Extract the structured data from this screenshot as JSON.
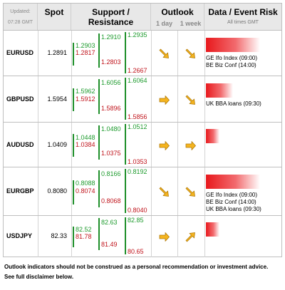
{
  "header": {
    "updated_label": "Updated:",
    "updated_time": "07:28 GMT",
    "spot": "Spot",
    "support_resistance": "Support / Resistance",
    "outlook": "Outlook",
    "outlook_1day": "1 day",
    "outlook_1week": "1 week",
    "data_event_risk": "Data / Event Risk",
    "times_note": "All times GMT"
  },
  "colors": {
    "resistance": "#1e9b2e",
    "support": "#c0141c",
    "arrow_fill": "#f5b41e",
    "risk_bar": "#e8181c"
  },
  "rows": [
    {
      "symbol": "EURUSD",
      "spot": "1.2891",
      "r1": "1.2903",
      "r2": "1.2910",
      "r3": "1.2935",
      "s1": "1.2817",
      "s2": "1.2803",
      "s3": "1.2667",
      "outlook_1day": "down-right-arrow-icon",
      "outlook_1week": "down-right-arrow-icon",
      "risk_level": 0.95,
      "events": [
        "GE Ifo Index (09:00)",
        "BE Biz Conf (14:00)"
      ]
    },
    {
      "symbol": "GBPUSD",
      "spot": "1.5954",
      "r1": "1.5962",
      "r2": "1.6056",
      "r3": "1.6064",
      "s1": "1.5912",
      "s2": "1.5896",
      "s3": "1.5856",
      "outlook_1day": "right-arrow-icon",
      "outlook_1week": "down-right-arrow-icon",
      "risk_level": 0.48,
      "events": [
        "UK BBA loans (09:30)"
      ]
    },
    {
      "symbol": "AUDUSD",
      "spot": "1.0409",
      "r1": "1.0448",
      "r2": "1.0480",
      "r3": "1.0512",
      "s1": "1.0384",
      "s2": "1.0375",
      "s3": "1.0353",
      "outlook_1day": "right-arrow-icon",
      "outlook_1week": "right-arrow-icon",
      "risk_level": 0.24,
      "events": []
    },
    {
      "symbol": "EURGBP",
      "spot": "0.8080",
      "r1": "0.8088",
      "r2": "0.8166",
      "r3": "0.8192",
      "s1": "0.8074",
      "s2": "0.8068",
      "s3": "0.8040",
      "outlook_1day": "down-right-arrow-icon",
      "outlook_1week": "down-right-arrow-icon",
      "risk_level": 0.95,
      "events": [
        "GE Ifo Index (09:00)",
        "BE Biz Conf (14:00)",
        "UK BBA loans (09:30)"
      ]
    },
    {
      "symbol": "USDJPY",
      "spot": "82.33",
      "r1": "82.52",
      "r2": "82.63",
      "r3": "82.85",
      "s1": "81.78",
      "s2": "81.49",
      "s3": "80.65",
      "outlook_1day": "right-arrow-icon",
      "outlook_1week": "up-right-arrow-icon",
      "risk_level": 0.24,
      "events": []
    }
  ],
  "footer": {
    "line1": "Outlook indicators should not be construed as a personal recommendation or investment advice.",
    "line2": "See full disclaimer below."
  }
}
